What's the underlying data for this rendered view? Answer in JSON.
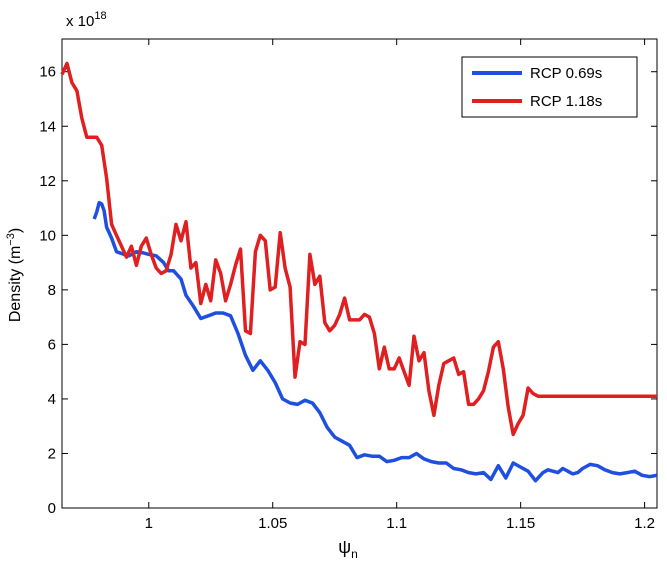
{
  "chart_data": {
    "type": "line",
    "title": "",
    "exponent_label": "x 10",
    "exponent_power": "18",
    "xlabel": "ψ",
    "xlabel_sub": "n",
    "ylabel": "Density (m",
    "ylabel_sup": "−3",
    "ylabel_close": ")",
    "xlim": [
      0.965,
      1.205
    ],
    "ylim": [
      0,
      17.2
    ],
    "x_ticks": [
      1,
      1.05,
      1.1,
      1.15,
      1.2
    ],
    "x_tick_labels": [
      "1",
      "1.05",
      "1.1",
      "1.15",
      "1.2"
    ],
    "y_ticks": [
      0,
      2,
      4,
      6,
      8,
      10,
      12,
      14,
      16
    ],
    "y_tick_labels": [
      "0",
      "2",
      "4",
      "6",
      "8",
      "10",
      "12",
      "14",
      "16"
    ],
    "grid": false,
    "legend_position": "top-right",
    "series": [
      {
        "name": "RCP 0.69s",
        "color": "#1f4fe0",
        "x": [
          0.978,
          0.979,
          0.98,
          0.981,
          0.982,
          0.983,
          0.985,
          0.987,
          0.99,
          0.992,
          0.995,
          0.998,
          1.0,
          1.003,
          1.006,
          1.008,
          1.01,
          1.013,
          1.015,
          1.018,
          1.021,
          1.024,
          1.027,
          1.03,
          1.033,
          1.036,
          1.039,
          1.042,
          1.045,
          1.048,
          1.051,
          1.054,
          1.057,
          1.06,
          1.063,
          1.066,
          1.069,
          1.072,
          1.075,
          1.078,
          1.081,
          1.084,
          1.087,
          1.09,
          1.093,
          1.096,
          1.099,
          1.102,
          1.105,
          1.108,
          1.111,
          1.114,
          1.117,
          1.12,
          1.123,
          1.126,
          1.129,
          1.132,
          1.135,
          1.138,
          1.141,
          1.144,
          1.147,
          1.15,
          1.153,
          1.156,
          1.159,
          1.161,
          1.163,
          1.165,
          1.167,
          1.169,
          1.171,
          1.173,
          1.175,
          1.178,
          1.181,
          1.184,
          1.187,
          1.19,
          1.193,
          1.196,
          1.199,
          1.202,
          1.205
        ],
        "y": [
          10.6,
          10.85,
          11.2,
          11.15,
          10.9,
          10.3,
          9.9,
          9.4,
          9.3,
          9.25,
          9.4,
          9.35,
          9.3,
          9.25,
          9.0,
          8.7,
          8.7,
          8.4,
          7.8,
          7.4,
          6.95,
          7.05,
          7.15,
          7.15,
          7.05,
          6.4,
          5.6,
          5.05,
          5.4,
          5.05,
          4.6,
          4.0,
          3.85,
          3.8,
          3.95,
          3.85,
          3.5,
          2.95,
          2.6,
          2.45,
          2.3,
          1.85,
          1.95,
          1.9,
          1.9,
          1.7,
          1.75,
          1.85,
          1.85,
          2.0,
          1.8,
          1.7,
          1.65,
          1.65,
          1.45,
          1.4,
          1.3,
          1.25,
          1.3,
          1.05,
          1.55,
          1.1,
          1.65,
          1.5,
          1.35,
          1.0,
          1.3,
          1.4,
          1.35,
          1.3,
          1.45,
          1.35,
          1.25,
          1.3,
          1.45,
          1.6,
          1.55,
          1.4,
          1.3,
          1.25,
          1.3,
          1.35,
          1.2,
          1.15,
          1.2
        ]
      },
      {
        "name": "RCP 1.18s",
        "color": "#e02020",
        "x": [
          0.965,
          0.967,
          0.969,
          0.971,
          0.973,
          0.975,
          0.977,
          0.979,
          0.981,
          0.983,
          0.985,
          0.987,
          0.989,
          0.991,
          0.993,
          0.995,
          0.997,
          0.999,
          1.001,
          1.003,
          1.005,
          1.007,
          1.009,
          1.011,
          1.013,
          1.015,
          1.017,
          1.019,
          1.021,
          1.023,
          1.025,
          1.027,
          1.029,
          1.031,
          1.033,
          1.035,
          1.037,
          1.039,
          1.041,
          1.043,
          1.045,
          1.047,
          1.049,
          1.051,
          1.053,
          1.055,
          1.057,
          1.059,
          1.061,
          1.063,
          1.065,
          1.067,
          1.069,
          1.071,
          1.073,
          1.075,
          1.077,
          1.079,
          1.081,
          1.083,
          1.085,
          1.087,
          1.089,
          1.091,
          1.093,
          1.095,
          1.097,
          1.099,
          1.101,
          1.103,
          1.105,
          1.107,
          1.109,
          1.111,
          1.113,
          1.115,
          1.117,
          1.119,
          1.121,
          1.123,
          1.125,
          1.127,
          1.129,
          1.131,
          1.133,
          1.135,
          1.137,
          1.139,
          1.141,
          1.143,
          1.145,
          1.147,
          1.149,
          1.151,
          1.153,
          1.155,
          1.157,
          1.159,
          1.161,
          1.163,
          1.165,
          1.167,
          1.169,
          1.171,
          1.173,
          1.175,
          1.177,
          1.179,
          1.181,
          1.183,
          1.185,
          1.187,
          1.189,
          1.191,
          1.193,
          1.195,
          1.197,
          1.199,
          1.201,
          1.203,
          1.205
        ],
        "y": [
          15.9,
          16.3,
          15.6,
          15.3,
          14.3,
          13.6,
          13.6,
          13.6,
          13.3,
          12.1,
          10.4,
          10.0,
          9.6,
          9.2,
          9.6,
          8.9,
          9.6,
          9.9,
          9.3,
          8.8,
          8.6,
          8.7,
          9.3,
          10.4,
          9.8,
          10.5,
          8.8,
          9.0,
          7.5,
          8.2,
          7.6,
          9.1,
          8.6,
          7.6,
          8.2,
          8.9,
          9.5,
          6.5,
          6.4,
          9.4,
          10.0,
          9.8,
          8.0,
          8.1,
          10.1,
          8.8,
          8.1,
          4.8,
          6.1,
          6.0,
          9.3,
          8.2,
          8.5,
          6.8,
          6.5,
          6.7,
          7.1,
          7.7,
          6.9,
          6.9,
          6.9,
          7.1,
          7.0,
          6.4,
          5.1,
          5.9,
          5.1,
          5.1,
          5.5,
          5.0,
          4.5,
          6.3,
          5.4,
          5.7,
          4.3,
          3.4,
          4.5,
          5.3,
          5.4,
          5.5,
          4.9,
          5.0,
          3.8,
          3.8,
          4.0,
          4.3,
          5.0,
          5.9,
          6.1,
          5.1,
          3.7,
          2.7,
          3.1,
          3.4,
          4.4,
          4.2,
          4.1,
          4.1,
          4.1,
          4.1,
          4.1,
          4.1,
          4.1,
          4.1,
          4.1,
          4.1,
          4.1,
          4.1,
          4.1,
          4.1,
          4.1,
          4.1,
          4.1,
          4.1,
          4.1,
          4.1,
          4.1,
          4.1,
          4.1,
          4.1,
          4.1
        ]
      }
    ]
  }
}
